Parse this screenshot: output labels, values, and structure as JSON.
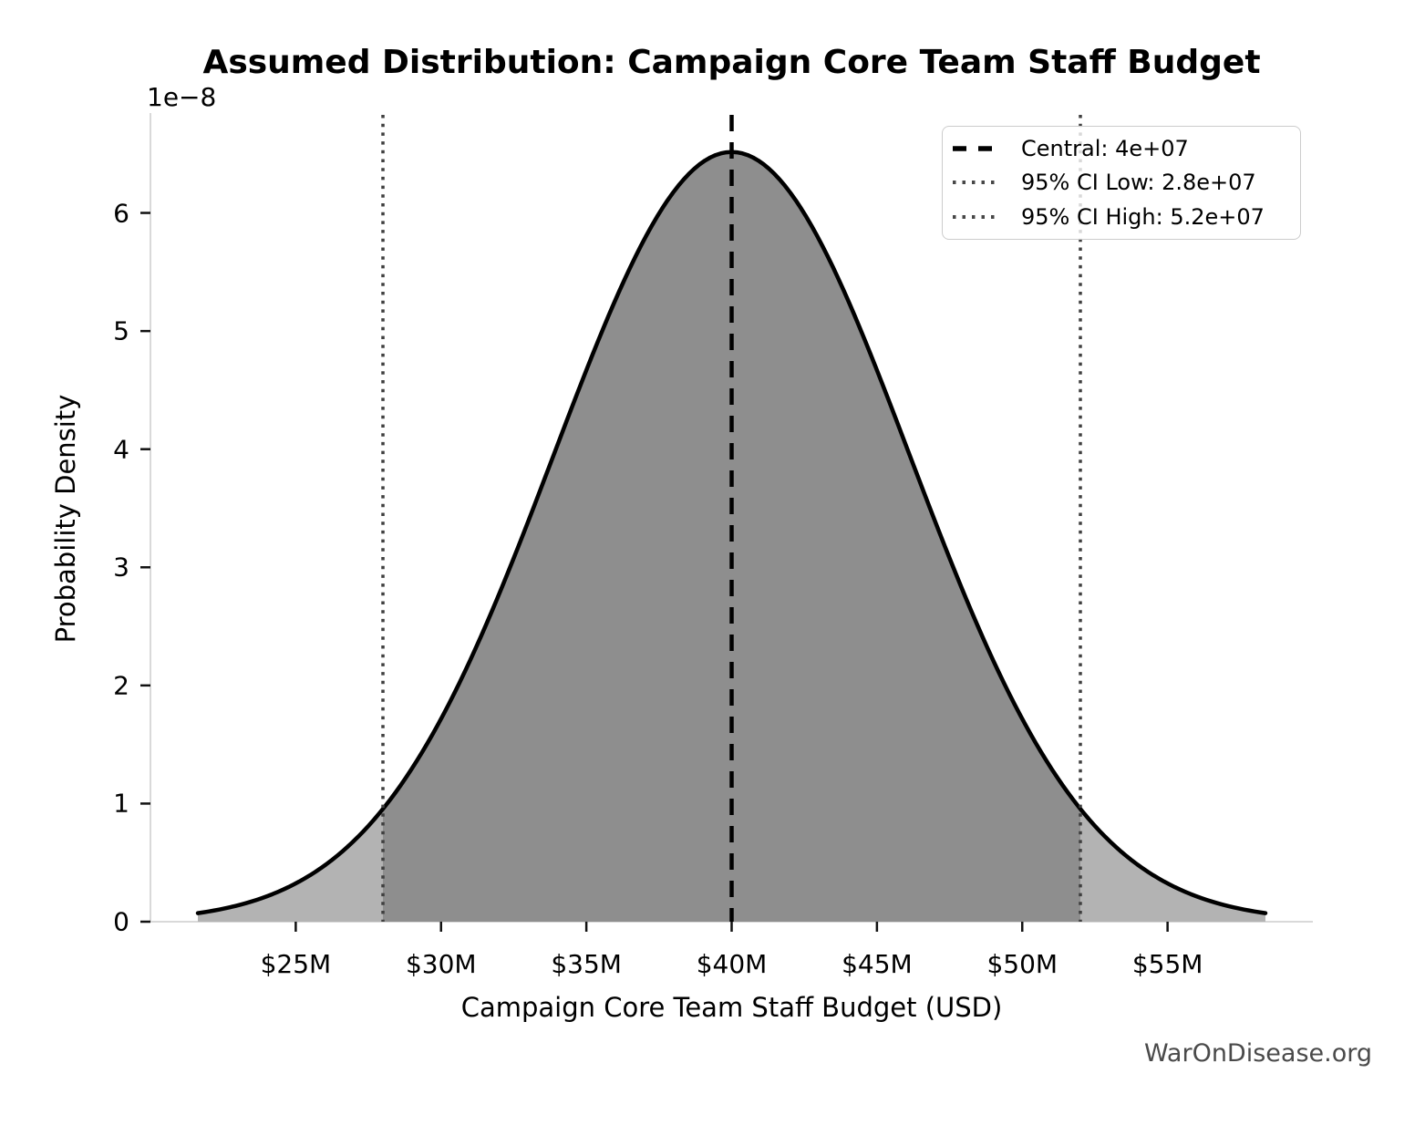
{
  "figure": {
    "watermark": "WarOnDisease.org"
  },
  "chart_data": {
    "type": "area",
    "subtype": "normal-distribution-pdf",
    "title": "Assumed Distribution: Campaign Core Team Staff Budget",
    "xlabel": "Campaign Core Team Staff Budget (USD)",
    "ylabel": "Probability Density",
    "y_scale_offset_label": "1e−8",
    "central_value": 40000000,
    "ci95_low": 28000000,
    "ci95_high": 52000000,
    "sigma": 6122539,
    "peak_density": 6.52e-08,
    "curve_extent_sigmas": 3,
    "xlim": [
      20000000,
      60000000
    ],
    "ylim": [
      0,
      6.83e-08
    ],
    "grid": false,
    "legend_position": "upper right",
    "x_ticks": [
      {
        "value": 25000000,
        "label": "$25M"
      },
      {
        "value": 30000000,
        "label": "$30M"
      },
      {
        "value": 35000000,
        "label": "$35M"
      },
      {
        "value": 40000000,
        "label": "$40M"
      },
      {
        "value": 45000000,
        "label": "$45M"
      },
      {
        "value": 50000000,
        "label": "$50M"
      },
      {
        "value": 55000000,
        "label": "$55M"
      }
    ],
    "y_ticks": [
      {
        "value": 0,
        "label": "0"
      },
      {
        "value": 1e-08,
        "label": "1"
      },
      {
        "value": 2e-08,
        "label": "2"
      },
      {
        "value": 3e-08,
        "label": "3"
      },
      {
        "value": 4e-08,
        "label": "4"
      },
      {
        "value": 5e-08,
        "label": "5"
      },
      {
        "value": 6e-08,
        "label": "6"
      }
    ],
    "legend": [
      {
        "label": "Central: 4e+07",
        "style": "dashed",
        "color": "#000000"
      },
      {
        "label": "95% CI Low: 2.8e+07",
        "style": "dotted",
        "color": "#474747"
      },
      {
        "label": "95% CI High: 5.2e+07",
        "style": "dotted",
        "color": "#474747"
      }
    ],
    "colors": {
      "curve": "#000000",
      "fill_outside_ci": "#b3b3b3",
      "fill_inside_ci": "#8e8e8e",
      "central_line": "#000000",
      "ci_line": "#3f3f3f",
      "spine": "#d9d9d9",
      "tick_mark": "#111111",
      "text": "#000000",
      "watermark": "#4a4a4a"
    }
  }
}
